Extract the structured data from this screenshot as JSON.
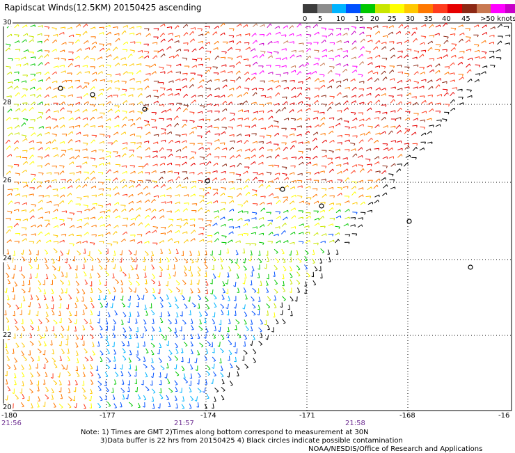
{
  "title": "Rapidscat Winds(12.5KM) 20150425 ascending",
  "legend": {
    "colors": [
      "#3c3c3c",
      "#8c8c8c",
      "#00b4ff",
      "#0050ff",
      "#00c800",
      "#c8e600",
      "#ffff00",
      "#ffc800",
      "#ff7800",
      "#ff3c1e",
      "#e60000",
      "#8c2814",
      "#c87850",
      "#ff00ff",
      "#c800c8",
      "#6400b4"
    ],
    "labels": [
      "0",
      "5",
      "10",
      "15",
      "20",
      "25",
      "30",
      "35",
      "40",
      "45",
      ">50 knots"
    ]
  },
  "lat_labels": [
    "30",
    "28",
    "26",
    "24",
    "22",
    "20"
  ],
  "lon_labels": [
    "-180",
    "-177",
    "-174",
    "-171",
    "-168",
    "-16"
  ],
  "time_labels": [
    "21:56",
    "21:57",
    "21:58"
  ],
  "notes": [
    "Note: 1) Times are GMT 2)Times along bottom correspond to measurement at 30N",
    "3)Data buffer is 22 hrs from 20150425 4) Black circles indicate possible contamination",
    "NOAA/NESDIS/Office of Research and Applications"
  ]
}
